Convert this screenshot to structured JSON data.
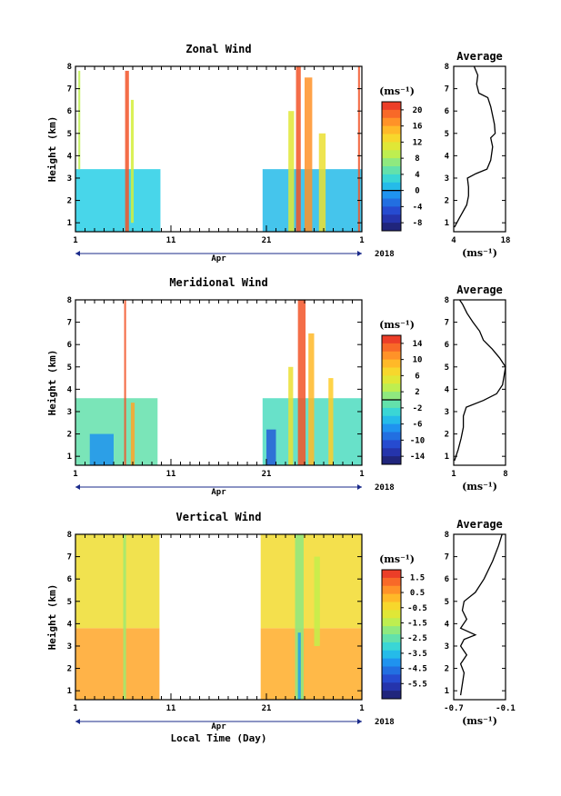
{
  "chart_data": [
    {
      "type": "heatmap",
      "title": "Zonal Wind",
      "ylabel": "Height (km)",
      "xlabel": "",
      "xticks": [
        "1",
        "11",
        "21",
        "1"
      ],
      "xlim_days": [
        1,
        31
      ],
      "month_label": "Apr",
      "year_label": "2018",
      "ylim": [
        0.6,
        8
      ],
      "yticks": [
        "1",
        "2",
        "3",
        "4",
        "5",
        "6",
        "7",
        "8"
      ],
      "grid": false,
      "colorbar": {
        "unit": "(ms⁻¹)",
        "min": -10,
        "max": 22,
        "ticks": [
          "20",
          "16",
          "12",
          "8",
          "4",
          "0",
          "-4",
          "-8"
        ]
      },
      "data_gaps_days": [
        [
          9.9,
          20.6
        ]
      ],
      "patches": [
        {
          "x0": 1.0,
          "x1": 9.9,
          "y0": 0.6,
          "y1": 3.4,
          "v": 2
        },
        {
          "x0": 6.2,
          "x1": 6.6,
          "y0": 0.6,
          "y1": 7.8,
          "v": 20
        },
        {
          "x0": 6.8,
          "x1": 7.1,
          "y0": 1.0,
          "y1": 6.5,
          "v": 10
        },
        {
          "x0": 1.3,
          "x1": 1.5,
          "y0": 3.4,
          "y1": 7.8,
          "v": 9
        },
        {
          "x0": 20.6,
          "x1": 31.0,
          "y0": 0.6,
          "y1": 3.4,
          "v": 1
        },
        {
          "x0": 24.1,
          "x1": 24.6,
          "y0": 0.6,
          "y1": 8.0,
          "v": 20
        },
        {
          "x0": 25.0,
          "x1": 25.8,
          "y0": 0.6,
          "y1": 7.5,
          "v": 17
        },
        {
          "x0": 23.3,
          "x1": 23.9,
          "y0": 0.6,
          "y1": 6.0,
          "v": 11
        },
        {
          "x0": 26.5,
          "x1": 27.2,
          "y0": 0.6,
          "y1": 5.0,
          "v": 12
        },
        {
          "x0": 30.6,
          "x1": 30.8,
          "y0": 0.6,
          "y1": 8.0,
          "v": 20
        }
      ],
      "profile": {
        "title": "Average",
        "xlabel": "(ms⁻¹)",
        "xlim": [
          4,
          18
        ],
        "xticks": [
          "4",
          "18"
        ],
        "x": [
          4.2,
          5.5,
          7.5,
          8.0,
          8.0,
          7.7,
          10.0,
          13.0,
          14.0,
          14.5,
          14.0,
          15.2,
          15.0,
          14.5,
          14.0,
          13.2,
          10.8,
          10.2,
          10.5,
          9.5
        ],
        "y": [
          0.8,
          1.2,
          1.8,
          2.2,
          2.6,
          3.0,
          3.2,
          3.4,
          3.8,
          4.4,
          4.8,
          5.0,
          5.4,
          5.8,
          6.2,
          6.6,
          6.8,
          7.2,
          7.6,
          8.0
        ]
      }
    },
    {
      "type": "heatmap",
      "title": "Meridional Wind",
      "ylabel": "Height (km)",
      "xlabel": "",
      "xticks": [
        "1",
        "11",
        "21",
        "1"
      ],
      "xlim_days": [
        1,
        31
      ],
      "month_label": "Apr",
      "year_label": "2018",
      "ylim": [
        0.6,
        8
      ],
      "yticks": [
        "1",
        "2",
        "3",
        "4",
        "5",
        "6",
        "7",
        "8"
      ],
      "grid": false,
      "colorbar": {
        "unit": "(ms⁻¹)",
        "min": -16,
        "max": 16,
        "ticks": [
          "14",
          "10",
          "6",
          "2",
          "-2",
          "-6",
          "-10",
          "-14"
        ]
      },
      "data_gaps_days": [
        [
          9.6,
          20.6
        ]
      ],
      "patches": [
        {
          "x0": 1.0,
          "x1": 9.6,
          "y0": 0.6,
          "y1": 3.6,
          "v": -1
        },
        {
          "x0": 2.5,
          "x1": 5.0,
          "y0": 0.6,
          "y1": 2.0,
          "v": -7
        },
        {
          "x0": 6.1,
          "x1": 6.3,
          "y0": 0.6,
          "y1": 8.0,
          "v": 14
        },
        {
          "x0": 6.8,
          "x1": 7.2,
          "y0": 0.6,
          "y1": 3.4,
          "v": 10
        },
        {
          "x0": 20.6,
          "x1": 31.0,
          "y0": 0.6,
          "y1": 3.6,
          "v": -2
        },
        {
          "x0": 21.0,
          "x1": 22.0,
          "y0": 0.6,
          "y1": 2.2,
          "v": -10
        },
        {
          "x0": 24.3,
          "x1": 25.1,
          "y0": 0.6,
          "y1": 8.0,
          "v": 14
        },
        {
          "x0": 25.4,
          "x1": 26.0,
          "y0": 0.6,
          "y1": 6.5,
          "v": 9
        },
        {
          "x0": 23.3,
          "x1": 23.8,
          "y0": 0.6,
          "y1": 5.0,
          "v": 6
        },
        {
          "x0": 27.5,
          "x1": 28.0,
          "y0": 0.6,
          "y1": 4.5,
          "v": 8
        }
      ],
      "profile": {
        "title": "Average",
        "xlabel": "(ms⁻¹)",
        "xlim": [
          1,
          8
        ],
        "xticks": [
          "1",
          "8"
        ],
        "x": [
          1.1,
          1.6,
          2.0,
          2.3,
          2.3,
          2.7,
          5.0,
          6.8,
          7.6,
          7.8,
          8.0,
          7.2,
          6.2,
          5.0,
          4.5,
          3.6,
          2.8,
          2.2,
          1.8
        ],
        "y": [
          0.8,
          1.3,
          1.8,
          2.3,
          2.8,
          3.2,
          3.5,
          3.8,
          4.2,
          4.6,
          5.0,
          5.4,
          5.8,
          6.2,
          6.6,
          7.0,
          7.4,
          7.8,
          8.0
        ]
      }
    },
    {
      "type": "heatmap",
      "title": "Vertical Wind",
      "ylabel": "Height (km)",
      "xlabel": "Local Time (Day)",
      "xticks": [
        "1",
        "11",
        "21",
        "1"
      ],
      "xlim_days": [
        1,
        31
      ],
      "month_label": "Apr",
      "year_label": "2018",
      "ylim": [
        0.6,
        8
      ],
      "yticks": [
        "1",
        "2",
        "3",
        "4",
        "5",
        "6",
        "7",
        "8"
      ],
      "grid": false,
      "colorbar": {
        "unit": "(ms⁻¹)",
        "min": -6.5,
        "max": 2.0,
        "ticks": [
          "1.5",
          "0.5",
          "-0.5",
          "-1.5",
          "-2.5",
          "-3.5",
          "-4.5",
          "-5.5"
        ]
      },
      "data_gaps_days": [
        [
          9.8,
          20.4
        ]
      ],
      "patches": [
        {
          "x0": 1.0,
          "x1": 9.8,
          "y0": 0.6,
          "y1": 3.8,
          "v": 0.4
        },
        {
          "x0": 1.0,
          "x1": 9.8,
          "y0": 3.8,
          "y1": 8.0,
          "v": -0.6
        },
        {
          "x0": 6.0,
          "x1": 6.3,
          "y0": 0.6,
          "y1": 8.0,
          "v": -1.8
        },
        {
          "x0": 20.4,
          "x1": 31.0,
          "y0": 0.6,
          "y1": 3.8,
          "v": 0.3
        },
        {
          "x0": 20.4,
          "x1": 31.0,
          "y0": 3.8,
          "y1": 8.0,
          "v": -0.5
        },
        {
          "x0": 24.0,
          "x1": 24.9,
          "y0": 0.6,
          "y1": 8.0,
          "v": -2.0
        },
        {
          "x0": 24.3,
          "x1": 24.6,
          "y0": 0.6,
          "y1": 3.6,
          "v": -4.0
        },
        {
          "x0": 26.0,
          "x1": 26.6,
          "y0": 3.0,
          "y1": 7.0,
          "v": -1.4
        }
      ],
      "profile": {
        "title": "Average",
        "xlabel": "(ms⁻¹)",
        "xlim": [
          -0.7,
          -0.1
        ],
        "xticks": [
          "-0.7",
          "-0.1"
        ],
        "x": [
          -0.62,
          -0.6,
          -0.58,
          -0.62,
          -0.55,
          -0.62,
          -0.58,
          -0.45,
          -0.62,
          -0.55,
          -0.6,
          -0.58,
          -0.45,
          -0.35,
          -0.25,
          -0.18,
          -0.14
        ],
        "y": [
          0.8,
          1.3,
          1.8,
          2.2,
          2.6,
          3.0,
          3.3,
          3.5,
          3.8,
          4.2,
          4.6,
          5.0,
          5.4,
          6.0,
          6.8,
          7.5,
          8.0
        ]
      }
    }
  ]
}
